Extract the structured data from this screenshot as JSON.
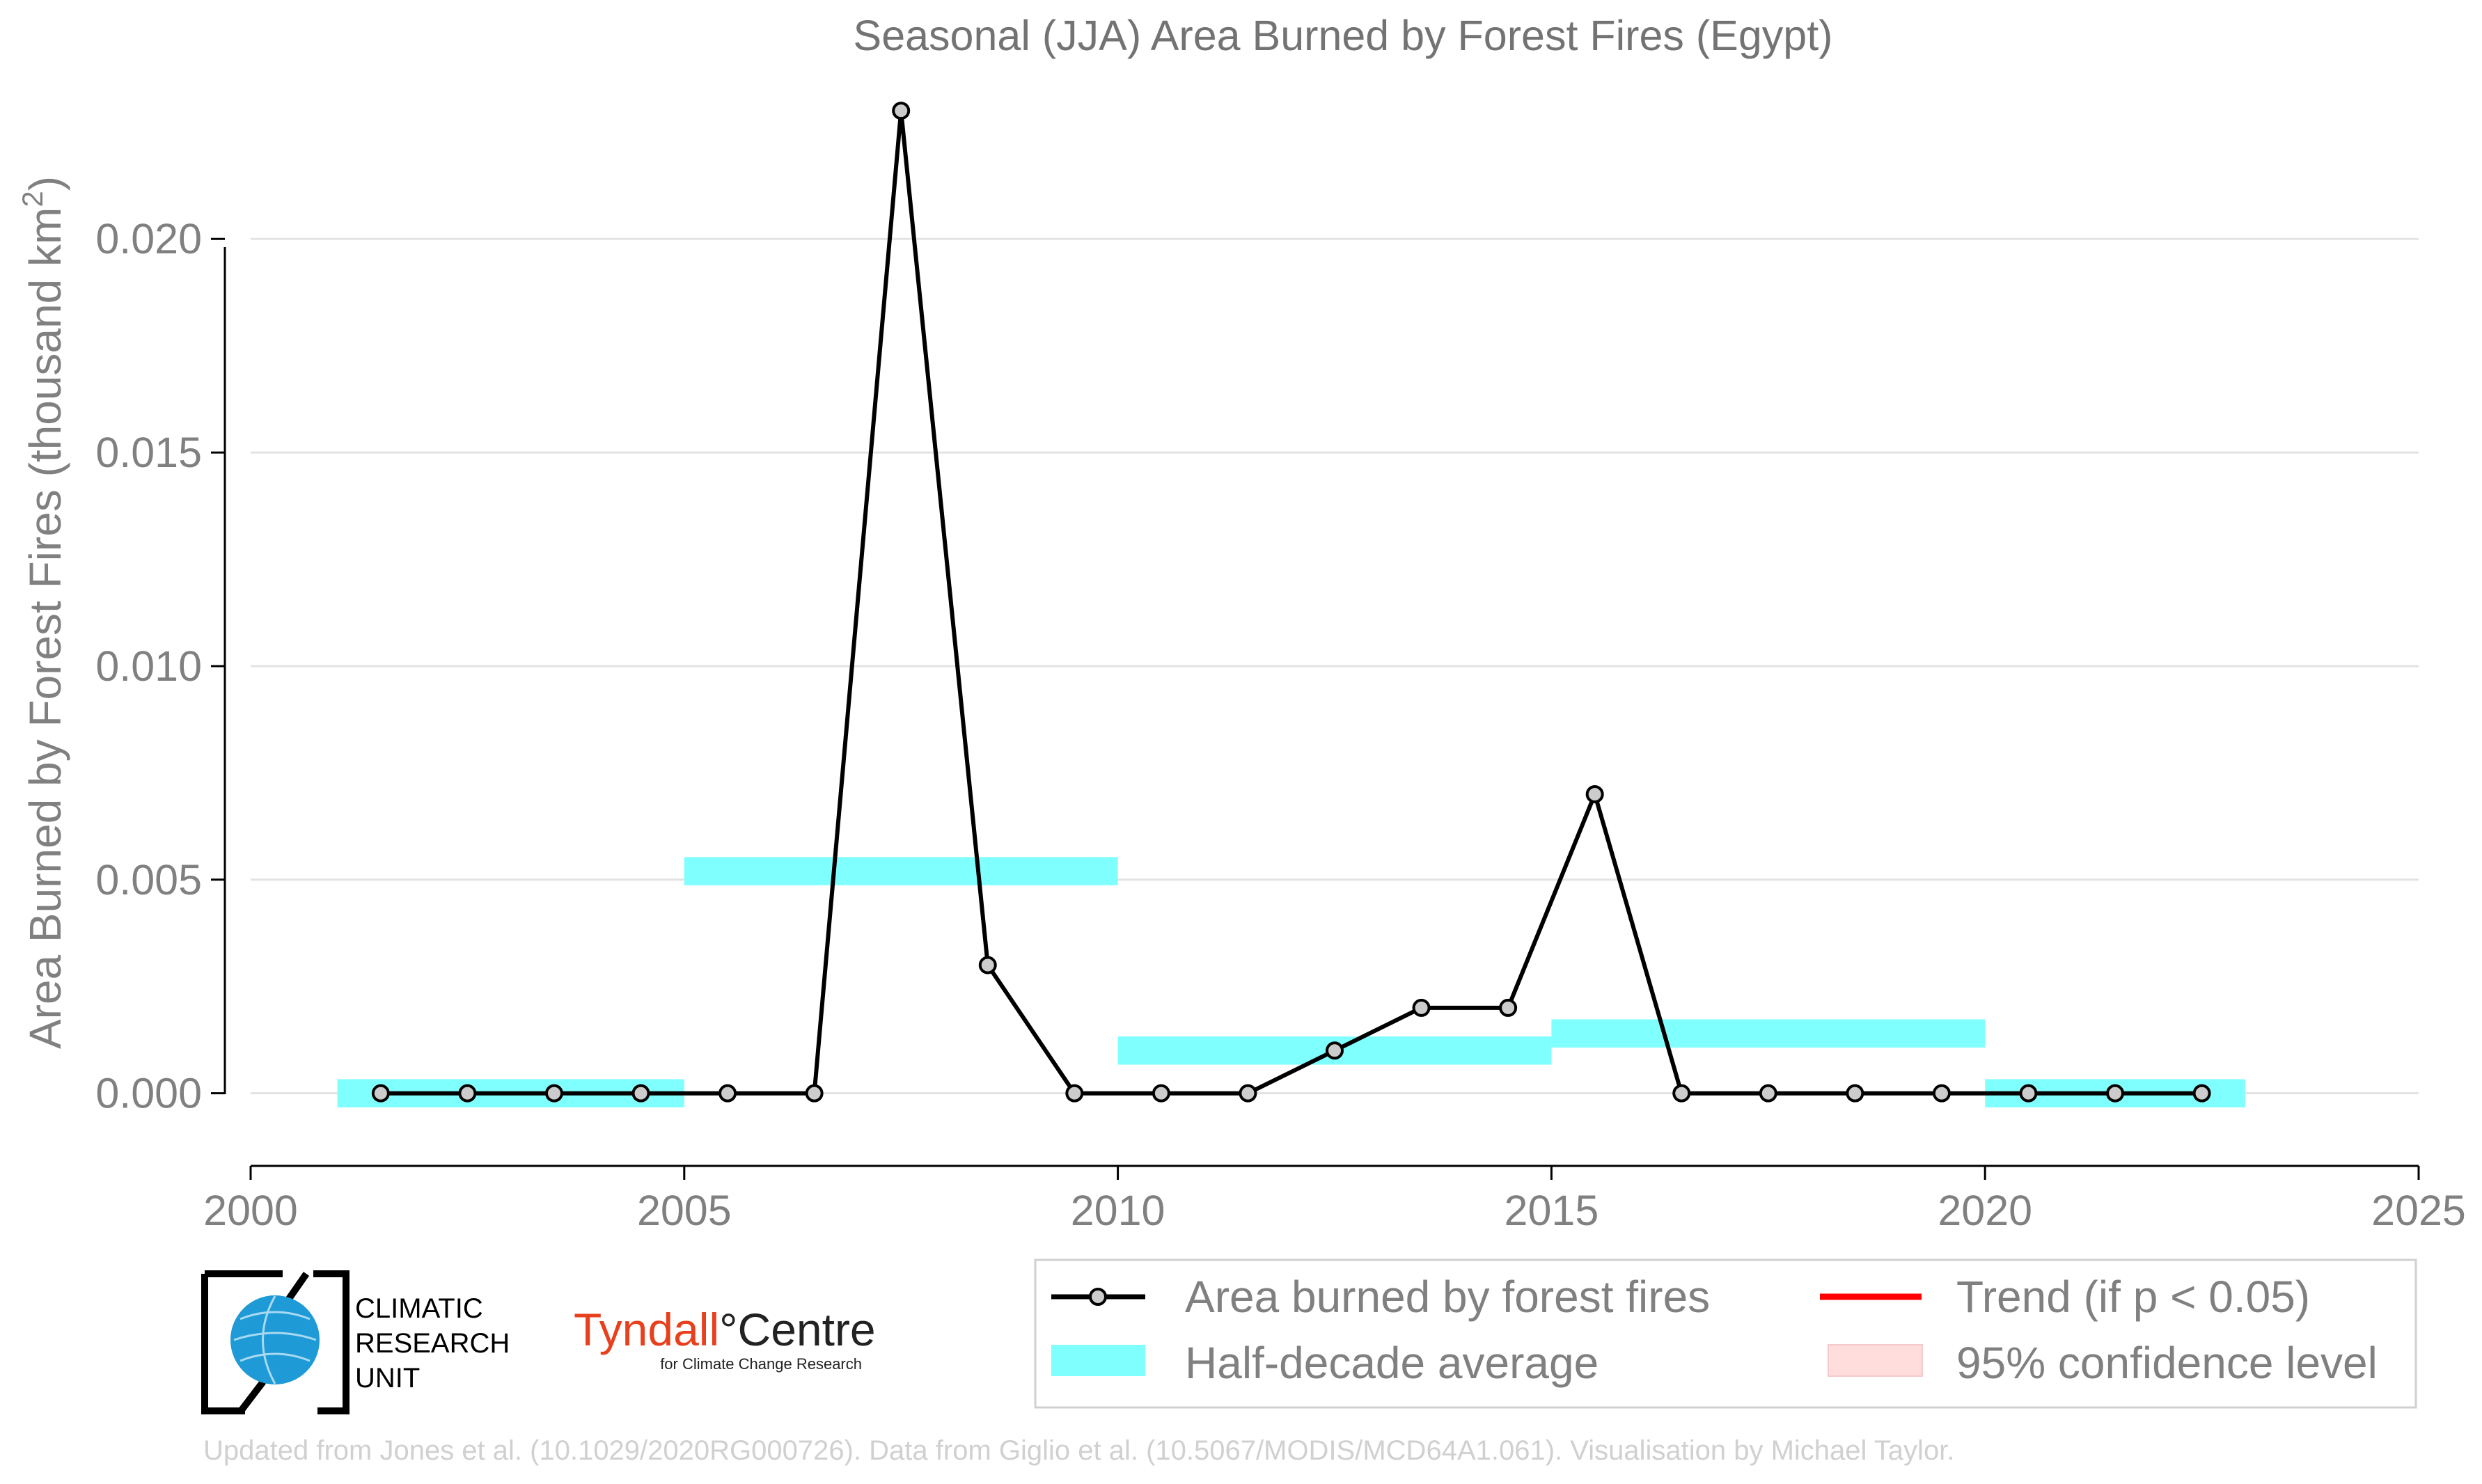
{
  "chart_data": {
    "type": "line",
    "title": "Seasonal (JJA) Area Burned by Forest Fires (Egypt)",
    "xlabel": "",
    "ylabel": "Area Burned by Forest Fires (thousand km",
    "ylabel_superscript": "2",
    "ylabel_suffix": ")",
    "xlim": [
      2000,
      2025
    ],
    "ylim": [
      -0.0017,
      0.0238
    ],
    "x_ticks": [
      2000,
      2005,
      2010,
      2015,
      2020,
      2025
    ],
    "y_ticks": [
      0.0,
      0.005,
      0.01,
      0.015,
      0.02
    ],
    "y_tick_labels": [
      "0.000",
      "0.005",
      "0.010",
      "0.015",
      "0.020"
    ],
    "grid": "horizontal",
    "legend_position": "bottom-right",
    "series": [
      {
        "name": "Area burned by forest fires",
        "color": "#000000",
        "marker_fill": "#cccccc",
        "x": [
          2001.5,
          2002.5,
          2003.5,
          2004.5,
          2005.5,
          2006.5,
          2007.5,
          2008.5,
          2009.5,
          2010.5,
          2011.5,
          2012.5,
          2013.5,
          2014.5,
          2015.5,
          2016.5,
          2017.5,
          2018.5,
          2019.5,
          2020.5,
          2021.5,
          2022.5
        ],
        "values": [
          0.0,
          0.0,
          0.0,
          0.0,
          0.0,
          0.0,
          0.023,
          0.003,
          0.0,
          0.0,
          0.0,
          0.001,
          0.002,
          0.002,
          0.007,
          0.0,
          0.0,
          0.0,
          0.0,
          0.0,
          0.0,
          0.0
        ]
      },
      {
        "name": "Half-decade average",
        "color": "#80ffff",
        "segments": [
          {
            "x_start": 2001,
            "x_end": 2005,
            "value": 0.0
          },
          {
            "x_start": 2005,
            "x_end": 2010,
            "value": 0.0052
          },
          {
            "x_start": 2010,
            "x_end": 2015,
            "value": 0.001
          },
          {
            "x_start": 2015,
            "x_end": 2020,
            "value": 0.0014
          },
          {
            "x_start": 2020,
            "x_end": 2023,
            "value": 0.0
          }
        ]
      }
    ],
    "legend": [
      {
        "label": "Area burned by forest fires",
        "kind": "line-marker",
        "color": "#000000"
      },
      {
        "label": "Trend (if p < 0.05)",
        "kind": "line",
        "color": "#ff0000"
      },
      {
        "label": "Half-decade average",
        "kind": "band",
        "color": "#80ffff"
      },
      {
        "label": "95% confidence level",
        "kind": "band",
        "color": "#ffdddd"
      }
    ],
    "caption": "Updated from Jones et al. (10.1029/2020RG000726). Data from Giglio et al. (10.5067/MODIS/MCD64A1.061). Visualisation by Michael Taylor."
  },
  "logos": {
    "cru_lines": [
      "CLIMATIC",
      "RESEARCH",
      "UNIT"
    ],
    "tyndall_main_left": "Tyndall",
    "tyndall_degree": "°",
    "tyndall_main_right": "Centre",
    "tyndall_sub": "for Climate Change Research",
    "tyndall_color": "#e8401c",
    "cru_globe_color": "#1e9ad6"
  }
}
